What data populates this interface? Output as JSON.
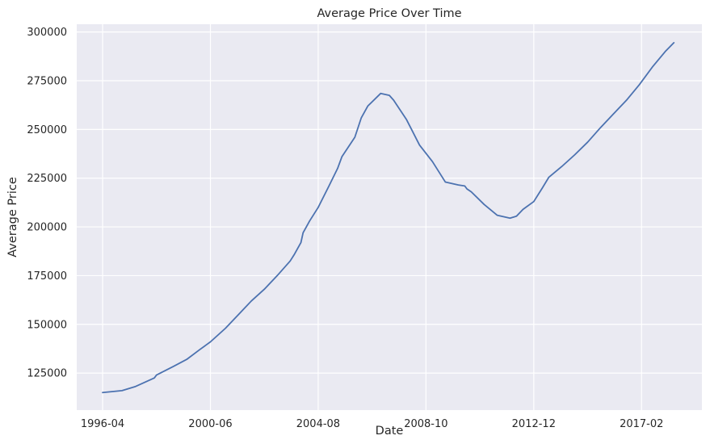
{
  "chart_data": {
    "type": "line",
    "title": "Average Price Over Time",
    "xlabel": "Date",
    "ylabel": "Average Price",
    "grid": true,
    "legend": "none",
    "x_ticks": [
      "1996-04",
      "2000-06",
      "2004-08",
      "2008-10",
      "2012-12",
      "2017-02"
    ],
    "y_ticks": [
      "125000",
      "150000",
      "175000",
      "200000",
      "225000",
      "250000",
      "275000",
      "300000"
    ],
    "xlim": [
      "1995-04",
      "2019-06"
    ],
    "ylim": [
      106000,
      304000
    ],
    "series": [
      {
        "color": "#4c72b0",
        "x": [
          "1996-04",
          "1997-01",
          "1997-07",
          "1998-01",
          "1998-04",
          "1998-05",
          "1999-01",
          "1999-07",
          "2000-01",
          "2000-06",
          "2001-01",
          "2001-07",
          "2002-01",
          "2002-07",
          "2003-01",
          "2003-07",
          "2003-09",
          "2003-12",
          "2004-01",
          "2004-04",
          "2004-08",
          "2005-01",
          "2005-05",
          "2005-07",
          "2006-01",
          "2006-04",
          "2006-07",
          "2007-01",
          "2007-05",
          "2007-07",
          "2008-01",
          "2008-07",
          "2009-01",
          "2009-07",
          "2010-01",
          "2010-04",
          "2010-05",
          "2010-07",
          "2011-01",
          "2011-07",
          "2012-01",
          "2012-04",
          "2012-07",
          "2012-12",
          "2013-04",
          "2013-07",
          "2014-01",
          "2014-07",
          "2015-01",
          "2015-07",
          "2016-01",
          "2016-07",
          "2017-01",
          "2017-07",
          "2018-01",
          "2018-05"
        ],
        "y": [
          115000,
          116000,
          118000,
          121000,
          122500,
          124000,
          128500,
          132000,
          137000,
          141000,
          148000,
          155000,
          162000,
          168000,
          175000,
          182500,
          186000,
          192000,
          197000,
          203000,
          210000,
          221000,
          230000,
          236000,
          246000,
          256000,
          262000,
          268500,
          267500,
          265000,
          255000,
          242000,
          233500,
          223000,
          221500,
          221000,
          219500,
          218000,
          211500,
          206000,
          204500,
          205500,
          209000,
          213000,
          220000,
          225500,
          231000,
          237000,
          243500,
          251000,
          258000,
          265000,
          273000,
          282000,
          290000,
          294500
        ]
      }
    ]
  }
}
